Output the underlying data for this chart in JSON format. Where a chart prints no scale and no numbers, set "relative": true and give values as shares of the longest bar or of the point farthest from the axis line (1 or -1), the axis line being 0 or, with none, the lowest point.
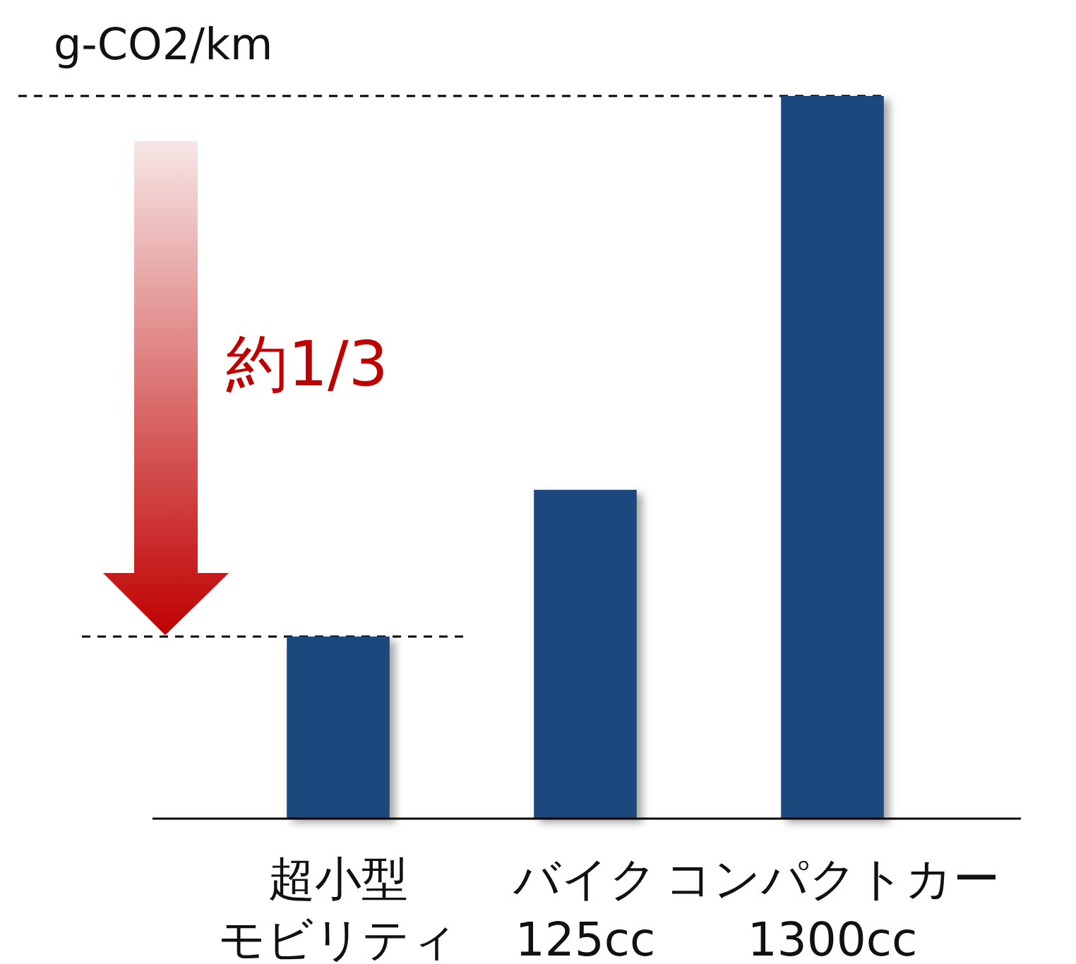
{
  "chart_data": {
    "type": "bar",
    "ylabel": "g-CO2/km",
    "categories": [
      "超小型モビリティ",
      "バイク 125cc",
      "コンパクトカー 1300cc"
    ],
    "values": [
      0.252,
      0.455,
      1
    ],
    "color": "#1f497d",
    "relative": true,
    "ref_lines": [
      {
        "axis": "y",
        "value": 0.252,
        "color": "#000000",
        "line_style": "dashed"
      },
      {
        "axis": "y",
        "value": 1,
        "color": "#000000",
        "line_style": "dashed"
      }
    ],
    "annotations": [
      "約1/3"
    ]
  }
}
